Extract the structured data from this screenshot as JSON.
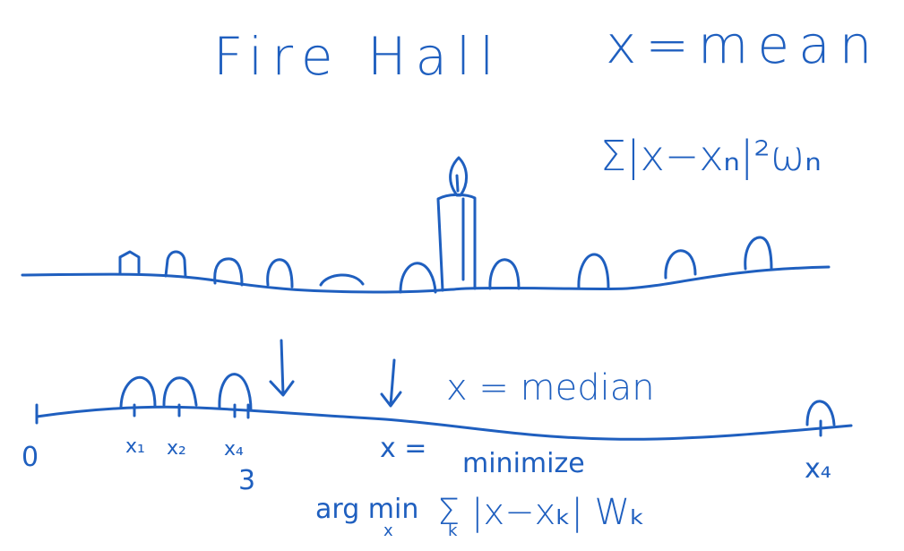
{
  "title": "Fire Hall",
  "top_formula": {
    "equation": "x=mean",
    "sum_expr": "Σ|x−xₙ|²ωₙ"
  },
  "bottom_formula": {
    "equation": "x = median",
    "x_eq": "x =",
    "minimize": "minimize",
    "argmin": "arg min",
    "argmin_sub": "x",
    "sum_expr": "Σ |x−xₖ| Wₖ",
    "sum_sub": "k"
  },
  "axis_labels": {
    "origin": "0",
    "x1": "x₁",
    "x2": "x₂",
    "x4a": "x₄",
    "three": "3",
    "x4b": "x₄"
  }
}
